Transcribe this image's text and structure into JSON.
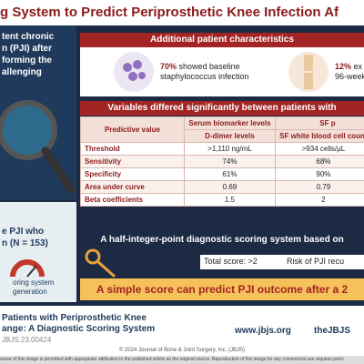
{
  "header": {
    "title": "g System to Predict Periprosthetic Knee Infection Af"
  },
  "left": {
    "intro": [
      "tent chronic",
      "n (PJI) after",
      "forming the",
      "allenging"
    ],
    "study": [
      "e PJI who",
      "n (N = 153)"
    ],
    "caption": [
      "oring system",
      "generation"
    ]
  },
  "characteristics": {
    "heading": "Additional patient characteristics",
    "items": [
      {
        "highlight": "70%",
        "text": "showed baseline staphylococcus infection"
      },
      {
        "highlight": "12%",
        "text": "ex",
        "text2": "96-week"
      }
    ]
  },
  "table": {
    "heading": "Variables differed significantly between patients with",
    "corner": "Predictive value",
    "group1": "Serum biomarker levels",
    "group2": "SF p",
    "columns": [
      "D-dimer levels",
      "SF white blood cell count"
    ],
    "rows": [
      [
        "Threshold",
        ">1,110 ng/mL",
        ">934 cells/µL"
      ],
      [
        "Sensitivity",
        "74%",
        "68%"
      ],
      [
        "Specificity",
        "61%",
        "90%"
      ],
      [
        "Area under curve",
        "0.69",
        "0.79"
      ],
      [
        "Beta coefficients",
        "1.5",
        "2"
      ]
    ]
  },
  "scoring": {
    "heading": "A half-integer-point diagnostic scoring system based on",
    "score": "Total score: >2",
    "risk": "Risk of PJI recu"
  },
  "conclusion": "A simple score can predict PJI outcome after a 2",
  "footer": {
    "article": [
      "Patients with Periprosthetic Knee",
      "ange: A Diagnostic Scoring System",
      "JBJS.23.00424"
    ],
    "site": "www.jbjs.org",
    "social": "theJBJS",
    "copyright": "© 2024 Journal of Bone & Joint Surgery, Inc. (JBJS)",
    "license": "reuse of this image is permitted with appropriate attribution to the published article as the original source. Reproduction of this image for any commercial use requires perm"
  }
}
